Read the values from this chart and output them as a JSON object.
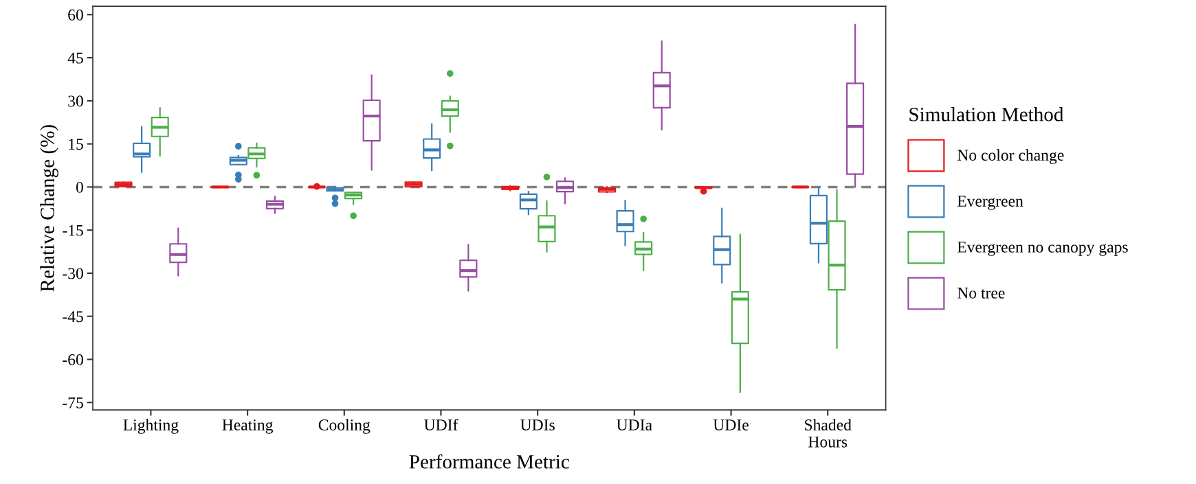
{
  "chart_data": {
    "type": "box",
    "xlabel": "Performance Metric",
    "ylabel": "Relative Change (%)",
    "legend_title": "Simulation Method",
    "categories": [
      "Lighting",
      "Heating",
      "Cooling",
      "UDIf",
      "UDIs",
      "UDIa",
      "UDIe",
      "Shaded\nHours"
    ],
    "series": [
      {
        "name": "No color change",
        "color": "#e41a1c",
        "boxes": [
          {
            "low": 0.2,
            "q1": 0.2,
            "median": 0.8,
            "q3": 1.6,
            "high": 1.6
          },
          {
            "low": -0.1,
            "q1": -0.1,
            "median": 0,
            "q3": 0,
            "high": 0.1
          },
          {
            "low": -0.1,
            "q1": -0.1,
            "median": 0,
            "q3": 0,
            "high": 0,
            "outliers": [
              0.2
            ]
          },
          {
            "low": 0,
            "q1": 0.1,
            "median": 0.9,
            "q3": 1.7,
            "high": 1.7
          },
          {
            "low": -1.2,
            "q1": -0.8,
            "median": -0.5,
            "q3": 0.1,
            "high": 0.3
          },
          {
            "low": -1.8,
            "q1": -1.7,
            "median": -0.8,
            "q3": -0.3,
            "high": 0
          },
          {
            "low": -0.3,
            "q1": -0.3,
            "median": -0.2,
            "q3": -0.1,
            "high": 0,
            "outliers": [
              -1.5
            ]
          },
          {
            "low": -0.1,
            "q1": -0.1,
            "median": 0,
            "q3": 0,
            "high": 0.1
          }
        ]
      },
      {
        "name": "Evergreen",
        "color": "#377eb8",
        "boxes": [
          {
            "low": 5.2,
            "q1": 10.5,
            "median": 11.5,
            "q3": 15.2,
            "high": 20.9
          },
          {
            "low": 7.8,
            "q1": 7.8,
            "median": 9.3,
            "q3": 10.3,
            "high": 10.8,
            "outliers": [
              14.2,
              4.2,
              2.7
            ]
          },
          {
            "low": -1.3,
            "q1": -1.3,
            "median": -1.0,
            "q3": -0.3,
            "high": 0,
            "outliers": [
              -3.8,
              -5.8
            ]
          },
          {
            "low": 5.8,
            "q1": 10.1,
            "median": 12.9,
            "q3": 16.7,
            "high": 21.9
          },
          {
            "low": -9.5,
            "q1": -7.6,
            "median": -4.5,
            "q3": -2.5,
            "high": -1.6
          },
          {
            "low": -20.3,
            "q1": -15.5,
            "median": -13.1,
            "q3": -8.3,
            "high": -4.7
          },
          {
            "low": -33.3,
            "q1": -27.0,
            "median": -21.8,
            "q3": -17.2,
            "high": -7.5
          },
          {
            "low": -26.3,
            "q1": -19.7,
            "median": -12.6,
            "q3": -3.0,
            "high": -0.2
          }
        ]
      },
      {
        "name": "Evergreen no canopy gaps",
        "color": "#4daf4a",
        "boxes": [
          {
            "low": 10.9,
            "q1": 17.6,
            "median": 20.8,
            "q3": 24.2,
            "high": 27.5
          },
          {
            "low": 7.1,
            "q1": 9.9,
            "median": 11.5,
            "q3": 13.6,
            "high": 15.2,
            "outliers": [
              4.1
            ]
          },
          {
            "low": -6.0,
            "q1": -4.0,
            "median": -2.8,
            "q3": -1.9,
            "high": -1.9,
            "outliers": [
              -10.0
            ]
          },
          {
            "low": 19.2,
            "q1": 24.7,
            "median": 26.9,
            "q3": 30.0,
            "high": 31.5,
            "outliers": [
              39.5,
              14.3
            ]
          },
          {
            "low": -22.5,
            "q1": -19.0,
            "median": -13.9,
            "q3": -10.0,
            "high": -4.9,
            "outliers": [
              3.5
            ]
          },
          {
            "low": -29.0,
            "q1": -23.5,
            "median": -21.6,
            "q3": -19.1,
            "high": -15.9,
            "outliers": [
              -11.1
            ]
          },
          {
            "low": -71.3,
            "q1": -54.4,
            "median": -39.0,
            "q3": -36.5,
            "high": -16.6
          },
          {
            "low": -56.0,
            "q1": -35.8,
            "median": -27.2,
            "q3": -11.9,
            "high": -1.0
          }
        ]
      },
      {
        "name": "No tree",
        "color": "#984ea3",
        "boxes": [
          {
            "low": -30.8,
            "q1": -26.2,
            "median": -23.5,
            "q3": -19.8,
            "high": -14.4
          },
          {
            "low": -9.1,
            "q1": -7.5,
            "median": -6.0,
            "q3": -4.9,
            "high": -3.3
          },
          {
            "low": 6.0,
            "q1": 16.1,
            "median": 24.7,
            "q3": 30.2,
            "high": 38.9
          },
          {
            "low": -36.1,
            "q1": -31.3,
            "median": -29.1,
            "q3": -25.5,
            "high": -20.1
          },
          {
            "low": -5.7,
            "q1": -1.6,
            "median": -0.2,
            "q3": 2.0,
            "high": 3.1
          },
          {
            "low": 20.0,
            "q1": 27.6,
            "median": 35.2,
            "q3": 39.8,
            "high": 50.7
          },
          null,
          {
            "low": 0,
            "q1": 4.5,
            "median": 21.1,
            "q3": 36.1,
            "high": 56.5
          }
        ]
      }
    ],
    "ylim": [
      -77.6,
      62.9
    ],
    "yticks": [
      -75,
      -60,
      -45,
      -30,
      -15,
      0,
      15,
      30,
      45,
      60
    ],
    "ref_lines": [
      {
        "axis": "y",
        "value": 0,
        "color": "#808080",
        "line_style": "dashed"
      }
    ],
    "legend": "right"
  }
}
